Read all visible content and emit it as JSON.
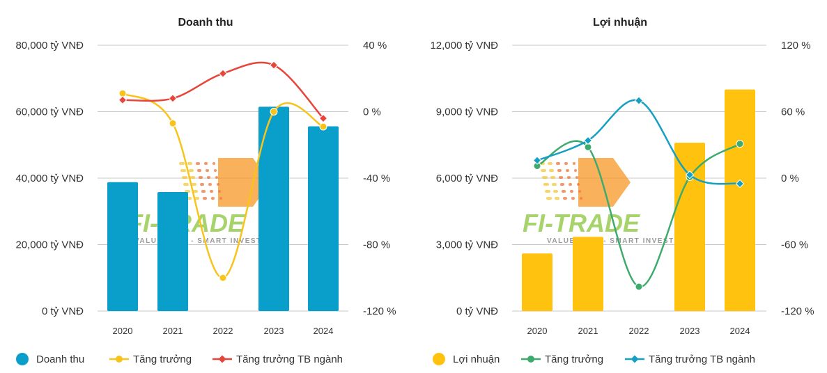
{
  "watermark": {
    "brand": "FI-TRADE",
    "tagline": "VALUE DATA - SMART INVEST",
    "colors": {
      "green": "#8cc63f",
      "orange": "#f7931e",
      "grey": "#9a9a9a"
    }
  },
  "chart_data": [
    {
      "type": "bar",
      "title": "Doanh thu",
      "categories": [
        "2020",
        "2021",
        "2022",
        "2023",
        "2024"
      ],
      "y_left": {
        "min": 0,
        "max": 80000,
        "ticks": [
          0,
          20000,
          40000,
          60000,
          80000
        ],
        "tick_labels": [
          "0 tỷ VNĐ",
          "20,000 tỷ VNĐ",
          "40,000 tỷ VNĐ",
          "60,000 tỷ VNĐ",
          "80,000 tỷ VNĐ"
        ]
      },
      "y_right": {
        "min": -120,
        "max": 40,
        "ticks": [
          -120,
          -80,
          -40,
          0,
          40
        ],
        "tick_labels": [
          "-120 %",
          "-80 %",
          "-40 %",
          "0 %",
          "40 %"
        ]
      },
      "grid": true,
      "legend_position": "bottom",
      "series": [
        {
          "name": "Doanh thu",
          "kind": "bar",
          "axis": "left",
          "color": "#0a9fcb",
          "values": [
            38800,
            35800,
            null,
            61500,
            55600
          ]
        },
        {
          "name": "Tăng trưởng",
          "kind": "line",
          "marker": "circle",
          "axis": "right",
          "color": "#f7c41c",
          "values": [
            11,
            -7,
            -100,
            0,
            -9
          ]
        },
        {
          "name": "Tăng trưởng TB ngành",
          "kind": "line",
          "marker": "diamond",
          "axis": "right",
          "color": "#e8443a",
          "values": [
            7,
            8,
            23,
            28,
            -4
          ]
        }
      ]
    },
    {
      "type": "bar",
      "title": "Lợi nhuận",
      "categories": [
        "2020",
        "2021",
        "2022",
        "2023",
        "2024"
      ],
      "y_left": {
        "min": 0,
        "max": 12000,
        "ticks": [
          0,
          3000,
          6000,
          9000,
          12000
        ],
        "tick_labels": [
          "0 tỷ VNĐ",
          "3,000 tỷ VNĐ",
          "6,000 tỷ VNĐ",
          "9,000 tỷ VNĐ",
          "12,000 tỷ VNĐ"
        ]
      },
      "y_right": {
        "min": -120,
        "max": 120,
        "ticks": [
          -120,
          -60,
          0,
          60,
          120
        ],
        "tick_labels": [
          "-120 %",
          "-60 %",
          "0 %",
          "60 %",
          "120 %"
        ]
      },
      "grid": true,
      "legend_position": "bottom",
      "series": [
        {
          "name": "Lợi nhuận",
          "kind": "bar",
          "axis": "left",
          "color": "#ffc20e",
          "values": [
            2600,
            3350,
            null,
            7600,
            10000
          ]
        },
        {
          "name": "Tăng trưởng",
          "kind": "line",
          "marker": "circle",
          "axis": "right",
          "color": "#3daa6e",
          "values": [
            11,
            28,
            -98,
            1,
            31
          ]
        },
        {
          "name": "Tăng trưởng TB ngành",
          "kind": "line",
          "marker": "diamond",
          "axis": "right",
          "color": "#159fc2",
          "values": [
            16,
            34,
            70,
            3,
            -5
          ]
        }
      ]
    }
  ]
}
